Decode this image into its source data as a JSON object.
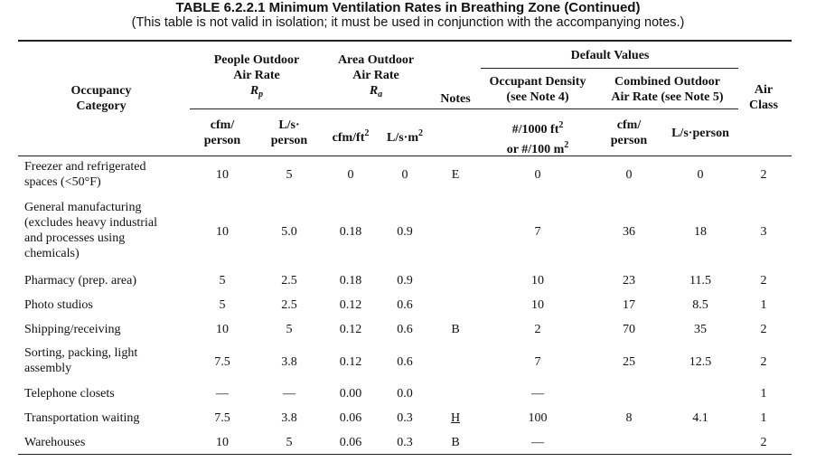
{
  "title": "TABLE 6.2.2.1 Minimum Ventilation Rates in Breathing Zone (Continued)",
  "subtitle": "(This table is not valid in isolation; it must be used in conjunction with the accompanying notes.)",
  "headers": {
    "occupancy_line1": "Occupancy",
    "occupancy_line2": "Category",
    "people_line1": "People Outdoor",
    "people_line2": "Air Rate",
    "people_symbol": "R",
    "people_symbol_sub": "p",
    "area_line1": "Area Outdoor",
    "area_line2": "Air Rate",
    "area_symbol": "R",
    "area_symbol_sub": "a",
    "notes": "Notes",
    "default_values": "Default Values",
    "density_line1": "Occupant Density",
    "density_line2": "(see Note 4)",
    "combined_line1": "Combined Outdoor",
    "combined_line2": "Air Rate (see Note 5)",
    "air_line1": "Air",
    "air_line2": "Class",
    "unit_cfm_person_1": "cfm/",
    "unit_cfm_person_2": "person",
    "unit_ls_person_1": "L/s·",
    "unit_ls_person_2": "person",
    "unit_cfm_ft2": "cfm/ft",
    "unit_cfm_ft2_sup": "2",
    "unit_ls_m2": "L/s·m",
    "unit_ls_m2_sup": "2",
    "unit_density_1": "#/1000 ft",
    "unit_density_1_sup": "2",
    "unit_density_2": "or #/100 m",
    "unit_density_2_sup": "2",
    "unit_comb_cfm_1": "cfm/",
    "unit_comb_cfm_2": "person",
    "unit_comb_ls": "L/s·person"
  },
  "rows": [
    {
      "category": "Freezer and refrigerated spaces (<50°F)",
      "rp_cfm": "10",
      "rp_ls": "5",
      "ra_cfm": "0",
      "ra_ls": "0",
      "notes": "E",
      "density": "0",
      "comb_cfm": "0",
      "comb_ls": "0",
      "air_class": "2"
    },
    {
      "category": "General manufacturing (excludes heavy industrial and processes using chemicals)",
      "rp_cfm": "10",
      "rp_ls": "5.0",
      "ra_cfm": "0.18",
      "ra_ls": "0.9",
      "notes": "",
      "density": "7",
      "comb_cfm": "36",
      "comb_ls": "18",
      "air_class": "3"
    },
    {
      "category": "Pharmacy (prep. area)",
      "rp_cfm": "5",
      "rp_ls": "2.5",
      "ra_cfm": "0.18",
      "ra_ls": "0.9",
      "notes": "",
      "density": "10",
      "comb_cfm": "23",
      "comb_ls": "11.5",
      "air_class": "2"
    },
    {
      "category": "Photo studios",
      "rp_cfm": "5",
      "rp_ls": "2.5",
      "ra_cfm": "0.12",
      "ra_ls": "0.6",
      "notes": "",
      "density": "10",
      "comb_cfm": "17",
      "comb_ls": "8.5",
      "air_class": "1"
    },
    {
      "category": "Shipping/receiving",
      "rp_cfm": "10",
      "rp_ls": "5",
      "ra_cfm": "0.12",
      "ra_ls": "0.6",
      "notes": "B",
      "density": "2",
      "comb_cfm": "70",
      "comb_ls": "35",
      "air_class": "2"
    },
    {
      "category": "Sorting, packing, light assembly",
      "rp_cfm": "7.5",
      "rp_ls": "3.8",
      "ra_cfm": "0.12",
      "ra_ls": "0.6",
      "notes": "",
      "density": "7",
      "comb_cfm": "25",
      "comb_ls": "12.5",
      "air_class": "2"
    },
    {
      "category": "Telephone closets",
      "rp_cfm": "—",
      "rp_ls": "—",
      "ra_cfm": "0.00",
      "ra_ls": "0.0",
      "notes": "",
      "density": "—",
      "comb_cfm": "",
      "comb_ls": "",
      "air_class": "1"
    },
    {
      "category": "Transportation waiting",
      "rp_cfm": "7.5",
      "rp_ls": "3.8",
      "ra_cfm": "0.06",
      "ra_ls": "0.3",
      "notes": "H",
      "density": "100",
      "comb_cfm": "8",
      "comb_ls": "4.1",
      "air_class": "1"
    },
    {
      "category": "Warehouses",
      "rp_cfm": "10",
      "rp_ls": "5",
      "ra_cfm": "0.06",
      "ra_ls": "0.3",
      "notes": "B",
      "density": "—",
      "comb_cfm": "",
      "comb_ls": "",
      "air_class": "2"
    }
  ]
}
